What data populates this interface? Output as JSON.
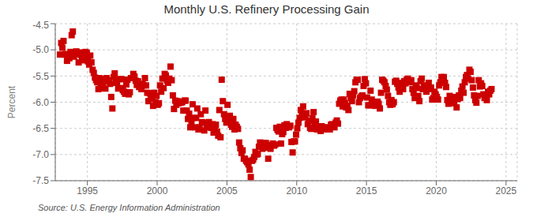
{
  "chart_data": {
    "type": "scatter",
    "title": "Monthly U.S. Refinery Processing Gain",
    "y_label": "Percent",
    "annotation": "Source: U.S. Energy Information Administration",
    "color": "#cc0000",
    "marker": "square",
    "grid": true,
    "ylim": [
      -7.5,
      -4.5
    ],
    "yticks": [
      -7.5,
      {
        "value": -7,
        "label": "-7.0"
      },
      -6.5,
      {
        "value": -6,
        "label": "-6.0"
      },
      -5.5,
      {
        "value": -5,
        "label": "-5.0"
      },
      -4.5
    ],
    "xlim": [
      1992.7,
      2025.8
    ],
    "xticks": [
      1995,
      2000,
      2005,
      2010,
      2015,
      2020,
      2025
    ],
    "x": [
      1993.0417,
      1993.125,
      1993.2083,
      1993.2917,
      1993.375,
      1993.4583,
      1993.5417,
      1993.625,
      1993.7083,
      1993.7917,
      1993.875,
      1993.9583,
      1994.0417,
      1994.125,
      1994.2083,
      1994.2917,
      1994.375,
      1994.4583,
      1994.5417,
      1994.625,
      1994.7083,
      1994.7917,
      1994.875,
      1994.9583,
      1995.0417,
      1995.125,
      1995.2083,
      1995.2917,
      1995.375,
      1995.4583,
      1995.5417,
      1995.625,
      1995.7083,
      1995.7917,
      1995.875,
      1995.9583,
      1996.0417,
      1996.125,
      1996.2083,
      1996.2917,
      1996.375,
      1996.4583,
      1996.5417,
      1996.625,
      1996.7083,
      1996.7917,
      1996.875,
      1996.9583,
      1997.0417,
      1997.125,
      1997.2083,
      1997.2917,
      1997.375,
      1997.4583,
      1997.5417,
      1997.625,
      1997.7083,
      1997.7917,
      1997.875,
      1997.9583,
      1998.0417,
      1998.125,
      1998.2083,
      1998.2917,
      1998.375,
      1998.4583,
      1998.5417,
      1998.625,
      1998.7083,
      1998.7917,
      1998.875,
      1998.9583,
      1999.0417,
      1999.125,
      1999.2083,
      1999.2917,
      1999.375,
      1999.4583,
      1999.5417,
      1999.625,
      1999.7083,
      1999.7917,
      1999.875,
      1999.9583,
      2000.0417,
      2000.125,
      2000.2083,
      2000.2917,
      2000.375,
      2000.4583,
      2000.5417,
      2000.625,
      2000.7083,
      2000.7917,
      2000.875,
      2000.9583,
      2001.0417,
      2001.125,
      2001.2083,
      2001.2917,
      2001.375,
      2001.4583,
      2001.5417,
      2001.625,
      2001.7083,
      2001.7917,
      2001.875,
      2001.9583,
      2002.0417,
      2002.125,
      2002.2083,
      2002.2917,
      2002.375,
      2002.4583,
      2002.5417,
      2002.625,
      2002.7083,
      2002.7917,
      2002.875,
      2002.9583,
      2003.0417,
      2003.125,
      2003.2083,
      2003.2917,
      2003.375,
      2003.4583,
      2003.5417,
      2003.625,
      2003.7083,
      2003.7917,
      2003.875,
      2003.9583,
      2004.0417,
      2004.125,
      2004.2083,
      2004.2917,
      2004.375,
      2004.4583,
      2004.5417,
      2004.625,
      2004.7083,
      2004.7917,
      2004.875,
      2004.9583,
      2005.0417,
      2005.125,
      2005.2083,
      2005.2917,
      2005.375,
      2005.4583,
      2005.5417,
      2005.625,
      2005.7083,
      2005.7917,
      2005.875,
      2005.9583,
      2006.0417,
      2006.125,
      2006.2083,
      2006.2917,
      2006.375,
      2006.4583,
      2006.5417,
      2006.625,
      2006.7083,
      2006.7917,
      2006.875,
      2006.9583,
      2007.0417,
      2007.125,
      2007.2083,
      2007.2917,
      2007.375,
      2007.4583,
      2007.5417,
      2007.625,
      2007.7083,
      2007.7917,
      2007.875,
      2007.9583,
      2008.0417,
      2008.125,
      2008.2083,
      2008.2917,
      2008.375,
      2008.4583,
      2008.5417,
      2008.625,
      2008.7083,
      2008.7917,
      2008.875,
      2008.9583,
      2009.0417,
      2009.125,
      2009.2083,
      2009.2917,
      2009.375,
      2009.4583,
      2009.5417,
      2009.625,
      2009.7083,
      2009.7917,
      2009.875,
      2009.9583,
      2010.0417,
      2010.125,
      2010.2083,
      2010.2917,
      2010.375,
      2010.4583,
      2010.5417,
      2010.625,
      2010.7083,
      2010.7917,
      2010.875,
      2010.9583,
      2011.0417,
      2011.125,
      2011.2083,
      2011.2917,
      2011.375,
      2011.4583,
      2011.5417,
      2011.625,
      2011.7083,
      2011.7917,
      2011.875,
      2011.9583,
      2012.0417,
      2012.125,
      2012.2083,
      2012.2917,
      2012.375,
      2012.4583,
      2012.5417,
      2012.625,
      2012.7083,
      2012.7917,
      2012.875,
      2012.9583,
      2013.0417,
      2013.125,
      2013.2083,
      2013.2917,
      2013.375,
      2013.4583,
      2013.5417,
      2013.625,
      2013.7083,
      2013.7917,
      2013.875,
      2013.9583,
      2014.0417,
      2014.125,
      2014.2083,
      2014.2917,
      2014.375,
      2014.4583,
      2014.5417,
      2014.625,
      2014.7083,
      2014.7917,
      2014.875,
      2014.9583,
      2015.0417,
      2015.125,
      2015.2083,
      2015.2917,
      2015.375,
      2015.4583,
      2015.5417,
      2015.625,
      2015.7083,
      2015.7917,
      2015.875,
      2015.9583,
      2016.0417,
      2016.125,
      2016.2083,
      2016.2917,
      2016.375,
      2016.4583,
      2016.5417,
      2016.625,
      2016.7083,
      2016.7917,
      2016.875,
      2016.9583,
      2017.0417,
      2017.125,
      2017.2083,
      2017.2917,
      2017.375,
      2017.4583,
      2017.5417,
      2017.625,
      2017.7083,
      2017.7917,
      2017.875,
      2017.9583,
      2018.0417,
      2018.125,
      2018.2083,
      2018.2917,
      2018.375,
      2018.4583,
      2018.5417,
      2018.625,
      2018.7083,
      2018.7917,
      2018.875,
      2018.9583,
      2019.0417,
      2019.125,
      2019.2083,
      2019.2917,
      2019.375,
      2019.4583,
      2019.5417,
      2019.625,
      2019.7083,
      2019.7917,
      2019.875,
      2019.9583,
      2020.0417,
      2020.125,
      2020.2083,
      2020.2917,
      2020.375,
      2020.4583,
      2020.5417,
      2020.625,
      2020.7083,
      2020.7917,
      2020.875,
      2020.9583,
      2021.0417,
      2021.125,
      2021.2083,
      2021.2917,
      2021.375,
      2021.4583,
      2021.5417,
      2021.625,
      2021.7083,
      2021.7917,
      2021.875,
      2021.9583,
      2022.0417,
      2022.125,
      2022.2083,
      2022.2917,
      2022.375,
      2022.4583,
      2022.5417,
      2022.625,
      2022.7083,
      2022.7917,
      2022.875,
      2022.9583,
      2023.0417,
      2023.125,
      2023.2083,
      2023.2917,
      2023.375,
      2023.4583,
      2023.5417,
      2023.625,
      2023.7083,
      2023.7917,
      2023.875,
      2023.9583
    ],
    "values": [
      -5.09,
      -4.87,
      -4.96,
      -4.83,
      -5.09,
      -5.08,
      -5.21,
      -5.14,
      -5.16,
      -5.04,
      -4.72,
      -4.65,
      -5.13,
      -5.07,
      -5.03,
      -5.08,
      -5.24,
      -5.05,
      -5.1,
      -5.2,
      -5.09,
      -5.14,
      -5.04,
      -5.06,
      -5.22,
      -5.28,
      -5.11,
      -5.24,
      -5.38,
      -5.44,
      -5.53,
      -5.58,
      -5.62,
      -5.75,
      -5.54,
      -5.64,
      -5.73,
      -5.68,
      -5.56,
      -5.74,
      -5.54,
      -5.58,
      -5.6,
      -5.65,
      -5.9,
      -6.12,
      -5.52,
      -5.45,
      -5.63,
      -5.62,
      -5.74,
      -5.56,
      -5.73,
      -5.56,
      -5.77,
      -5.8,
      -5.84,
      -5.66,
      -5.57,
      -5.85,
      -5.81,
      -5.54,
      -5.54,
      -5.46,
      -5.51,
      -5.59,
      -5.67,
      -5.6,
      -5.71,
      -5.71,
      -5.75,
      -5.65,
      -5.68,
      -5.54,
      -5.68,
      -5.82,
      -5.98,
      -5.83,
      -5.91,
      -5.93,
      -6.07,
      -5.82,
      -6.0,
      -5.88,
      -6.05,
      -6.02,
      -5.68,
      -5.8,
      -5.55,
      -5.73,
      -5.46,
      -5.49,
      -5.59,
      -5.63,
      -5.55,
      -5.32,
      -5.58,
      -5.87,
      -6.13,
      -5.97,
      -6.05,
      -5.98,
      -6.02,
      -6.0,
      -6.01,
      -6.0,
      -6.16,
      -5.97,
      -5.97,
      -6.16,
      -6.32,
      -6.22,
      -6.48,
      -6.37,
      -6.04,
      -6.3,
      -6.48,
      -6.3,
      -6.12,
      -6.52,
      -6.48,
      -6.23,
      -6.38,
      -6.39,
      -6.54,
      -6.16,
      -6.47,
      -6.41,
      -6.38,
      -6.48,
      -6.49,
      -6.42,
      -6.58,
      -6.48,
      -6.43,
      -6.56,
      -6.64,
      -6.15,
      -6.67,
      -5.57,
      -5.98,
      -6.23,
      -6.32,
      -6.39,
      -6.05,
      -6.34,
      -6.26,
      -6.43,
      -6.47,
      -6.32,
      -6.52,
      -6.43,
      -6.47,
      -6.51,
      -6.77,
      -6.88,
      -6.97,
      -6.92,
      -7.08,
      -7.08,
      -7.12,
      -7.15,
      -7.19,
      -7.29,
      -7.43,
      -7.12,
      -7.1,
      -7.05,
      -6.95,
      -7.0,
      -6.99,
      -6.85,
      -6.77,
      -6.82,
      -6.89,
      -6.78,
      -6.87,
      -6.78,
      -6.84,
      -7.08,
      -6.84,
      -6.89,
      -6.82,
      -6.79,
      -6.83,
      -6.81,
      -6.49,
      -6.53,
      -6.56,
      -6.47,
      -6.79,
      -6.61,
      -6.57,
      -6.44,
      -6.49,
      -6.42,
      -6.47,
      -6.48,
      -6.45,
      -6.76,
      -6.96,
      -6.75,
      -6.75,
      -6.62,
      -6.5,
      -6.39,
      -6.3,
      -6.15,
      -6.21,
      -6.08,
      -6.29,
      -6.28,
      -6.21,
      -6.42,
      -6.36,
      -6.49,
      -6.51,
      -6.31,
      -6.19,
      -6.41,
      -6.37,
      -6.52,
      -6.5,
      -6.47,
      -6.55,
      -6.46,
      -6.52,
      -6.48,
      -6.52,
      -6.51,
      -6.49,
      -6.48,
      -6.52,
      -6.43,
      -6.42,
      -6.44,
      -6.48,
      -6.39,
      -6.35,
      -6.41,
      -6.03,
      -5.97,
      -5.95,
      -6.08,
      -5.95,
      -6.02,
      -6.1,
      -6.07,
      -6.15,
      -5.84,
      -5.92,
      -5.98,
      -5.87,
      -5.79,
      -5.62,
      -5.57,
      -5.57,
      -6.0,
      -5.92,
      -5.89,
      -5.87,
      -5.69,
      -5.56,
      -5.64,
      -5.91,
      -6.06,
      -6.06,
      -5.78,
      -5.95,
      -6.0,
      -6.01,
      -6.07,
      -6.05,
      -5.99,
      -6.03,
      -6.12,
      -5.82,
      -5.57,
      -5.59,
      -5.62,
      -5.69,
      -5.76,
      -5.88,
      -6.0,
      -6.05,
      -5.96,
      -6.04,
      -6.0,
      -5.61,
      -5.59,
      -5.65,
      -5.72,
      -5.8,
      -5.63,
      -5.68,
      -5.75,
      -5.6,
      -5.64,
      -5.57,
      -5.55,
      -5.59,
      -5.62,
      -5.58,
      -5.75,
      -5.82,
      -5.92,
      -5.68,
      -5.73,
      -5.88,
      -5.98,
      -5.6,
      -5.55,
      -5.75,
      -5.68,
      -5.72,
      -5.8,
      -5.68,
      -5.63,
      -5.75,
      -5.72,
      -5.95,
      -5.92,
      -5.8,
      -5.85,
      -5.9,
      -5.95,
      -5.68,
      -5.62,
      -5.52,
      -5.58,
      -5.52,
      -5.63,
      -5.71,
      -5.96,
      -6.03,
      -5.88,
      -5.91,
      -5.95,
      -5.97,
      -6.02,
      -5.9,
      -6.1,
      -5.94,
      -5.87,
      -5.92,
      -5.78,
      -5.7,
      -5.82,
      -5.62,
      -5.52,
      -5.48,
      -5.55,
      -5.38,
      -5.42,
      -5.58,
      -5.72,
      -5.87,
      -5.96,
      -6.01,
      -5.88,
      -5.58,
      -5.7,
      -5.64,
      -5.69,
      -5.85,
      -5.92,
      -5.88,
      -5.96,
      -5.8,
      -5.85,
      -5.78,
      -5.75
    ]
  }
}
